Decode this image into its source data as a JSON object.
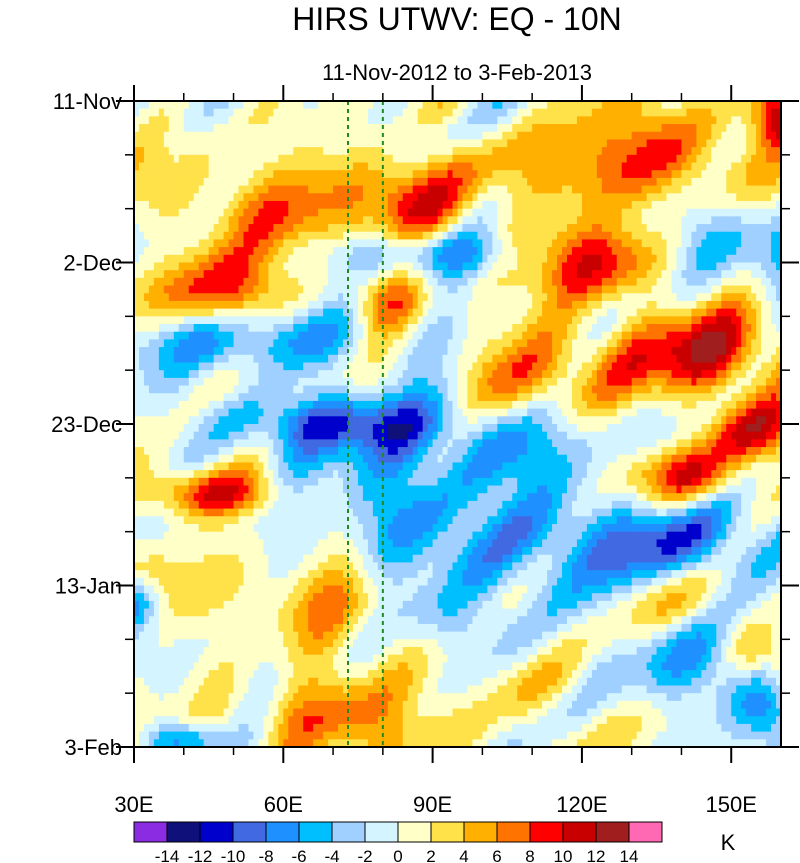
{
  "chart_data": {
    "type": "heatmap",
    "title": "HIRS UTWV: EQ - 10N",
    "subtitle": "11-Nov-2012 to 3-Feb-2013",
    "x_axis": {
      "range": [
        30,
        160
      ],
      "ticks": [
        30,
        60,
        90,
        120,
        150
      ],
      "tick_labels": [
        "30E",
        "60E",
        "90E",
        "120E",
        "150E"
      ]
    },
    "y_axis": {
      "range_days": [
        0,
        84
      ],
      "orientation": "time increases downward",
      "ticks": [
        0,
        21,
        42,
        63,
        84
      ],
      "tick_labels": [
        "11-Nov",
        "2-Dec",
        "23-Dec",
        "13-Jan",
        "3-Feb"
      ]
    },
    "reference_lines": [
      {
        "x": 73,
        "style": "dashed",
        "color": "#1f8a1f"
      },
      {
        "x": 80,
        "style": "dashed",
        "color": "#1f8a1f"
      }
    ],
    "colorbar": {
      "unit": "K",
      "levels": [
        -14,
        -12,
        -10,
        -8,
        -6,
        -4,
        -2,
        0,
        2,
        4,
        6,
        8,
        10,
        12,
        14
      ],
      "level_labels": [
        "-14",
        "-12",
        "-10",
        "-8",
        "-6",
        "-4",
        "-2",
        "0",
        "2",
        "4",
        "6",
        "8",
        "10",
        "12",
        "14"
      ],
      "colors": [
        "#8b2be2",
        "#10107a",
        "#0000cd",
        "#4169e1",
        "#1e90ff",
        "#00bfff",
        "#a0d0ff",
        "#d4f4ff",
        "#ffffc8",
        "#ffe14a",
        "#ffb000",
        "#ff7300",
        "#ff0000",
        "#c80000",
        "#a01e1e",
        "#ff69b4"
      ]
    },
    "features": [
      {
        "x": 60,
        "day": 14,
        "v": 6,
        "sx": 30,
        "sd": 6
      },
      {
        "x": 83,
        "day": 12,
        "v": 5,
        "sx": 12,
        "sd": 5
      },
      {
        "x": 115,
        "day": 9,
        "v": 4,
        "sx": 25,
        "sd": 6
      },
      {
        "x": 137,
        "day": 7,
        "v": 7,
        "sx": 17,
        "sd": 7
      },
      {
        "x": 160,
        "day": 2,
        "v": 11,
        "sx": 6,
        "sd": 4
      },
      {
        "x": 122,
        "day": 21,
        "v": 9,
        "sx": 15,
        "sd": 5
      },
      {
        "x": 48,
        "day": 25,
        "v": 8,
        "sx": 13,
        "sd": 5
      },
      {
        "x": 80,
        "day": 26,
        "v": 5,
        "sx": 8,
        "sd": 4
      },
      {
        "x": 145,
        "day": 33,
        "v": 10,
        "sx": 18,
        "sd": 6
      },
      {
        "x": 110,
        "day": 36,
        "v": 6,
        "sx": 18,
        "sd": 7
      },
      {
        "x": 156,
        "day": 43,
        "v": 9,
        "sx": 9,
        "sd": 4
      },
      {
        "x": 140,
        "day": 49,
        "v": 8,
        "sx": 13,
        "sd": 4
      },
      {
        "x": 45,
        "day": 51,
        "v": 9,
        "sx": 14,
        "sd": 3
      },
      {
        "x": 68,
        "day": 66,
        "v": 5,
        "sx": 18,
        "sd": 6
      },
      {
        "x": 35,
        "day": 62,
        "v": 4,
        "sx": 8,
        "sd": 4
      },
      {
        "x": 138,
        "day": 64,
        "v": 4,
        "sx": 12,
        "sd": 5
      },
      {
        "x": 157,
        "day": 72,
        "v": 8,
        "sx": 8,
        "sd": 4
      },
      {
        "x": 75,
        "day": 81,
        "v": 7,
        "sx": 18,
        "sd": 6
      },
      {
        "x": 112,
        "day": 77,
        "v": 3,
        "sx": 10,
        "sd": 5
      },
      {
        "x": 90,
        "day": 20,
        "v": -6,
        "sx": 20,
        "sd": 3
      },
      {
        "x": 150,
        "day": 17,
        "v": -6,
        "sx": 15,
        "sd": 6
      },
      {
        "x": 55,
        "day": 31,
        "v": -6,
        "sx": 28,
        "sd": 4
      },
      {
        "x": 70,
        "day": 42,
        "v": -9,
        "sx": 22,
        "sd": 4
      },
      {
        "x": 105,
        "day": 44,
        "v": -6,
        "sx": 18,
        "sd": 6
      },
      {
        "x": 110,
        "day": 57,
        "v": -6,
        "sx": 30,
        "sd": 7
      },
      {
        "x": 80,
        "day": 50,
        "v": -5,
        "sx": 10,
        "sd": 9
      },
      {
        "x": 140,
        "day": 58,
        "v": -6,
        "sx": 18,
        "sd": 6
      },
      {
        "x": 145,
        "day": 73,
        "v": -6,
        "sx": 15,
        "sd": 6
      },
      {
        "x": 95,
        "day": 68,
        "v": -4,
        "sx": 12,
        "sd": 5
      },
      {
        "x": 40,
        "day": 83,
        "v": -7,
        "sx": 8,
        "sd": 2
      },
      {
        "x": 158,
        "day": 80,
        "v": -6,
        "sx": 6,
        "sd": 4
      },
      {
        "x": 30,
        "day": 65,
        "v": -7,
        "sx": 4,
        "sd": 3
      }
    ]
  }
}
